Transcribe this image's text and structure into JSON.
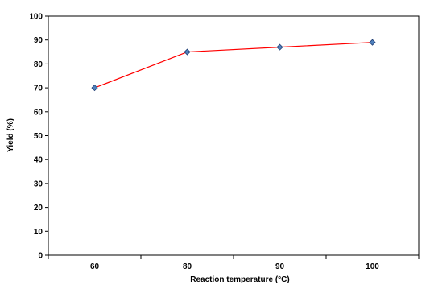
{
  "chart_data": {
    "type": "line",
    "title": "",
    "xlabel": "Reaction temperature (°C)",
    "ylabel": "Yield (%)",
    "categories": [
      "60",
      "80",
      "90",
      "100"
    ],
    "series": [
      {
        "values": [
          70,
          85,
          87,
          89
        ],
        "line_color": "#ff0000",
        "marker_color": "#4f81bd",
        "marker_border": "#1f3d73",
        "marker": "diamond"
      }
    ],
    "ylim": [
      0,
      100
    ],
    "yticks": [
      "0",
      "10",
      "20",
      "30",
      "40",
      "50",
      "60",
      "70",
      "80",
      "90",
      "100"
    ],
    "grid": false,
    "legend": "none"
  }
}
